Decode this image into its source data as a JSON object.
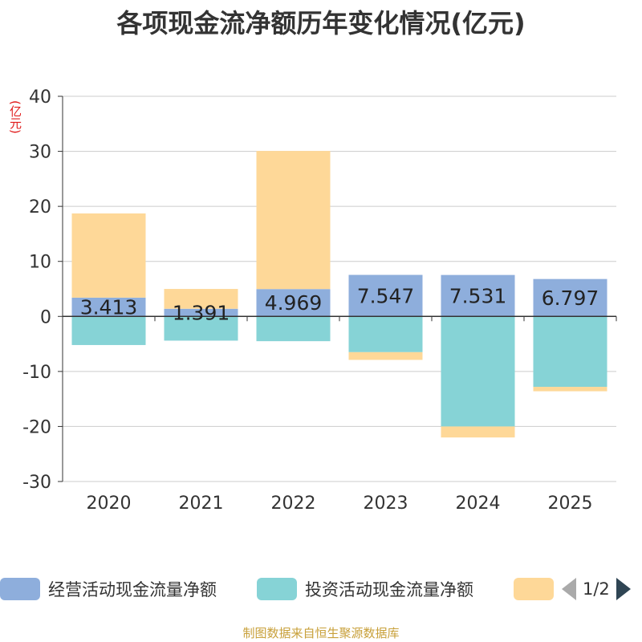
{
  "title": "各项现金流净额历年变化情况(亿元)",
  "unit_label": "(亿元)",
  "source": "制图数据来自恒生聚源数据库",
  "legend": {
    "page_text": "1/2"
  },
  "colors": {
    "operating": "#8eaedc",
    "investing": "#86d3d6",
    "financing": "#fed898",
    "axis": "#333333",
    "grid": "#cccccc"
  },
  "chart_data": {
    "type": "bar",
    "stacked": true,
    "title": "各项现金流净额历年变化情况(亿元)",
    "ylabel": "(亿元)",
    "ylim": [
      -30,
      40
    ],
    "yticks": [
      40,
      30,
      20,
      10,
      0,
      -10,
      -20,
      -30
    ],
    "categories": [
      "2020",
      "2021",
      "2022",
      "2023",
      "2024",
      "2025"
    ],
    "series": [
      {
        "name": "经营活动现金流量净额",
        "key": "operating",
        "values": [
          3.413,
          1.391,
          4.969,
          7.547,
          7.531,
          6.797
        ],
        "labels": [
          "3.413",
          "1.391",
          "4.969",
          "7.547",
          "7.531",
          "6.797"
        ]
      },
      {
        "name": "投资活动现金流量净额",
        "key": "investing",
        "values": [
          -5.2,
          -4.4,
          -4.5,
          -6.5,
          -20.0,
          -12.8
        ],
        "labels": null
      },
      {
        "name": "",
        "key": "financing",
        "values": [
          15.3,
          3.6,
          25.1,
          -1.4,
          -2.0,
          -0.8
        ],
        "labels": null
      }
    ]
  }
}
